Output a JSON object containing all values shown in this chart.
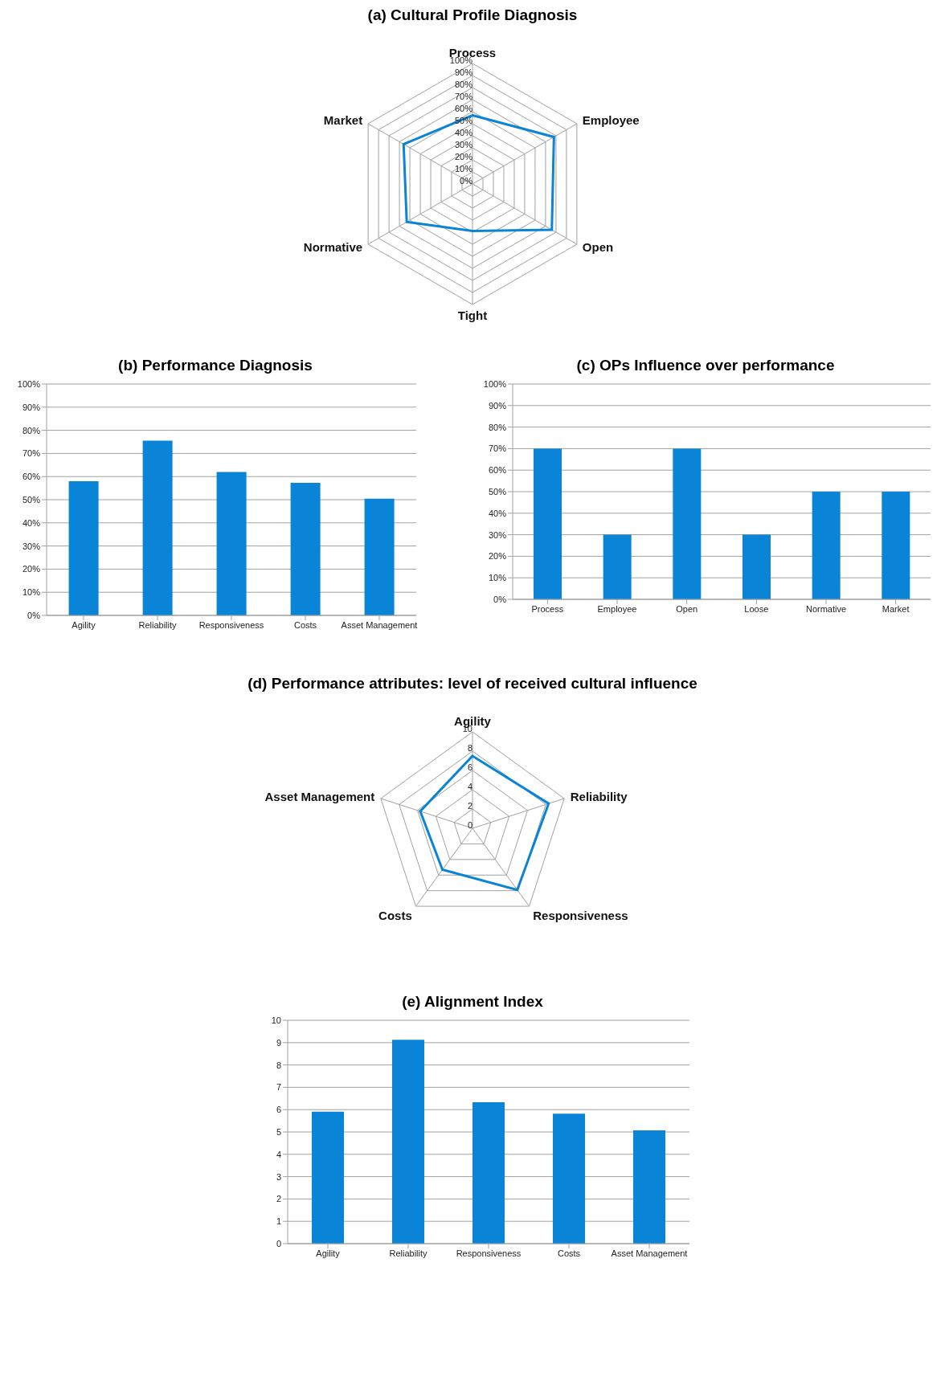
{
  "chart_data": [
    {
      "type": "radar",
      "title": "(a) Cultural Profile Diagnosis",
      "categories": [
        "Process",
        "Employee",
        "Open",
        "Tight",
        "Normative",
        "Market"
      ],
      "ylim": [
        0,
        100
      ],
      "yticks": [
        {
          "value": 0,
          "label": "0%"
        },
        {
          "value": 10,
          "label": "10%"
        },
        {
          "value": 20,
          "label": "20%"
        },
        {
          "value": 30,
          "label": "30%"
        },
        {
          "value": 40,
          "label": "40%"
        },
        {
          "value": 50,
          "label": "50%"
        },
        {
          "value": 60,
          "label": "60%"
        },
        {
          "value": 70,
          "label": "70%"
        },
        {
          "value": 80,
          "label": "80%"
        },
        {
          "value": 90,
          "label": "90%"
        },
        {
          "value": 100,
          "label": "100%"
        }
      ],
      "grid": true,
      "series": [
        {
          "color": "#0a84d6",
          "values": [
            57,
            78,
            76,
            39,
            63,
            66
          ]
        }
      ]
    },
    {
      "type": "bar",
      "title": "(b) Performance Diagnosis",
      "categories": [
        "Agility",
        "Reliability",
        "Responsiveness",
        "Costs",
        "Asset Management"
      ],
      "values": [
        58,
        75.5,
        62,
        57.3,
        50.4
      ],
      "color": "#0a84d6",
      "ylim": [
        0,
        100
      ],
      "yticks": [
        {
          "value": 0,
          "label": "0%"
        },
        {
          "value": 10,
          "label": "10%"
        },
        {
          "value": 20,
          "label": "20%"
        },
        {
          "value": 30,
          "label": "30%"
        },
        {
          "value": 40,
          "label": "40%"
        },
        {
          "value": 50,
          "label": "50%"
        },
        {
          "value": 60,
          "label": "60%"
        },
        {
          "value": 70,
          "label": "70%"
        },
        {
          "value": 80,
          "label": "80%"
        },
        {
          "value": 90,
          "label": "90%"
        },
        {
          "value": 100,
          "label": "100%"
        }
      ],
      "grid": "y"
    },
    {
      "type": "bar",
      "title": "(c) OPs Influence over performance",
      "categories": [
        "Process",
        "Employee",
        "Open",
        "Loose",
        "Normative",
        "Market"
      ],
      "values": [
        70,
        30,
        70,
        30,
        50,
        50
      ],
      "color": "#0a84d6",
      "ylim": [
        0,
        100
      ],
      "yticks": [
        {
          "value": 0,
          "label": "0%"
        },
        {
          "value": 10,
          "label": "10%"
        },
        {
          "value": 20,
          "label": "20%"
        },
        {
          "value": 30,
          "label": "30%"
        },
        {
          "value": 40,
          "label": "40%"
        },
        {
          "value": 50,
          "label": "50%"
        },
        {
          "value": 60,
          "label": "60%"
        },
        {
          "value": 70,
          "label": "70%"
        },
        {
          "value": 80,
          "label": "80%"
        },
        {
          "value": 90,
          "label": "90%"
        },
        {
          "value": 100,
          "label": "100%"
        }
      ],
      "grid": "y"
    },
    {
      "type": "radar",
      "title": "(d) Performance attributes: level of received cultural influence",
      "categories": [
        "Agility",
        "Reliability",
        "Responsiveness",
        "Costs",
        "Asset Management"
      ],
      "ylim": [
        0,
        10
      ],
      "yticks": [
        0,
        2,
        4,
        6,
        8,
        10
      ],
      "grid": true,
      "series": [
        {
          "color": "#0a84d6",
          "values": [
            7.5,
            8.3,
            7.9,
            5.3,
            5.7
          ]
        }
      ]
    },
    {
      "type": "bar",
      "title": "(e) Alignment Index",
      "categories": [
        "Agility",
        "Reliability",
        "Responsiveness",
        "Costs",
        "Asset Management"
      ],
      "values": [
        5.91,
        9.13,
        6.33,
        5.82,
        5.07
      ],
      "color": "#0a84d6",
      "ylim": [
        0,
        10
      ],
      "yticks": [
        0,
        1,
        2,
        3,
        4,
        5,
        6,
        7,
        8,
        9,
        10
      ],
      "grid": "y"
    }
  ]
}
